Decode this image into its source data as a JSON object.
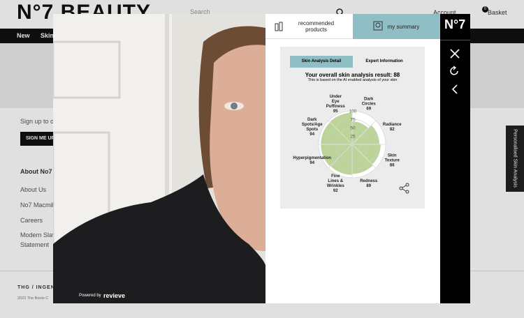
{
  "site": {
    "logo": "N°7 BEAUTY",
    "search": "Search",
    "account": "Account",
    "basket": "Basket",
    "basket_count": 0,
    "nav": [
      "New",
      "Skin"
    ],
    "signup": "Sign up to o",
    "signup_button": "SIGN ME UP",
    "about_heading": "About No7",
    "about_links": [
      "About Us",
      "No7 Macmil",
      "Careers",
      "Modern Slav",
      "Statement"
    ],
    "footer_brand": "THG / INGENU",
    "copyright": "2023 The Boots C",
    "side_tab": "Personalised Skin Analysis"
  },
  "modal": {
    "tabs": [
      "recommended products",
      "my summary"
    ],
    "logo": "N°7",
    "powered_by": "Powered by",
    "powered_brand": "revieve",
    "sub_tabs": [
      "Skin Analysis Detail",
      "Expert Information"
    ]
  },
  "chart_data": {
    "type": "polar",
    "title": "Your overall skin analysis result: 88",
    "subtitle": "This is based on the AI enabled analysis of your skin",
    "categories": [
      "Under Eye Puffiness",
      "Dark Circles",
      "Radiance",
      "Skin Texture",
      "Redness",
      "Fine Lines & Wrinkles",
      "Hyperpigmentation",
      "Dark Spots/Age Spots"
    ],
    "values": [
      95,
      69,
      82,
      86,
      89,
      92,
      94,
      94
    ],
    "rlim": [
      0,
      100
    ],
    "rticks": [
      25,
      50,
      75,
      100
    ],
    "color": "#bcd49a",
    "grid": true
  }
}
